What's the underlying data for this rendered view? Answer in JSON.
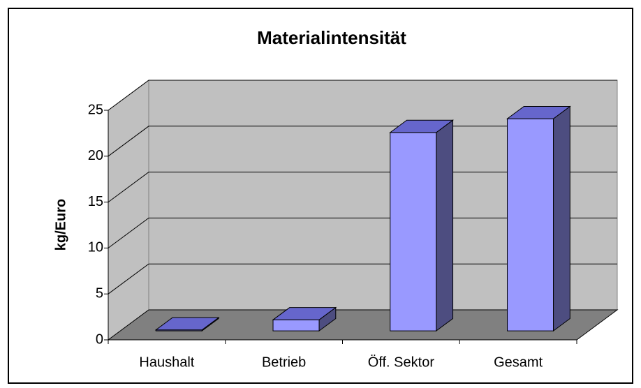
{
  "chart_data": {
    "type": "bar",
    "title": "Materialintensität",
    "y_label": "kg/Euro",
    "categories": [
      "Haushalt",
      "Betrieb",
      "Öff. Sektor",
      "Gesamt"
    ],
    "values": [
      0.1,
      1.2,
      21.6,
      23.1
    ],
    "color": "#9999ff",
    "ylim": [
      0,
      25
    ],
    "yticks": [
      0,
      5,
      10,
      15,
      20,
      25
    ],
    "grid": true
  }
}
